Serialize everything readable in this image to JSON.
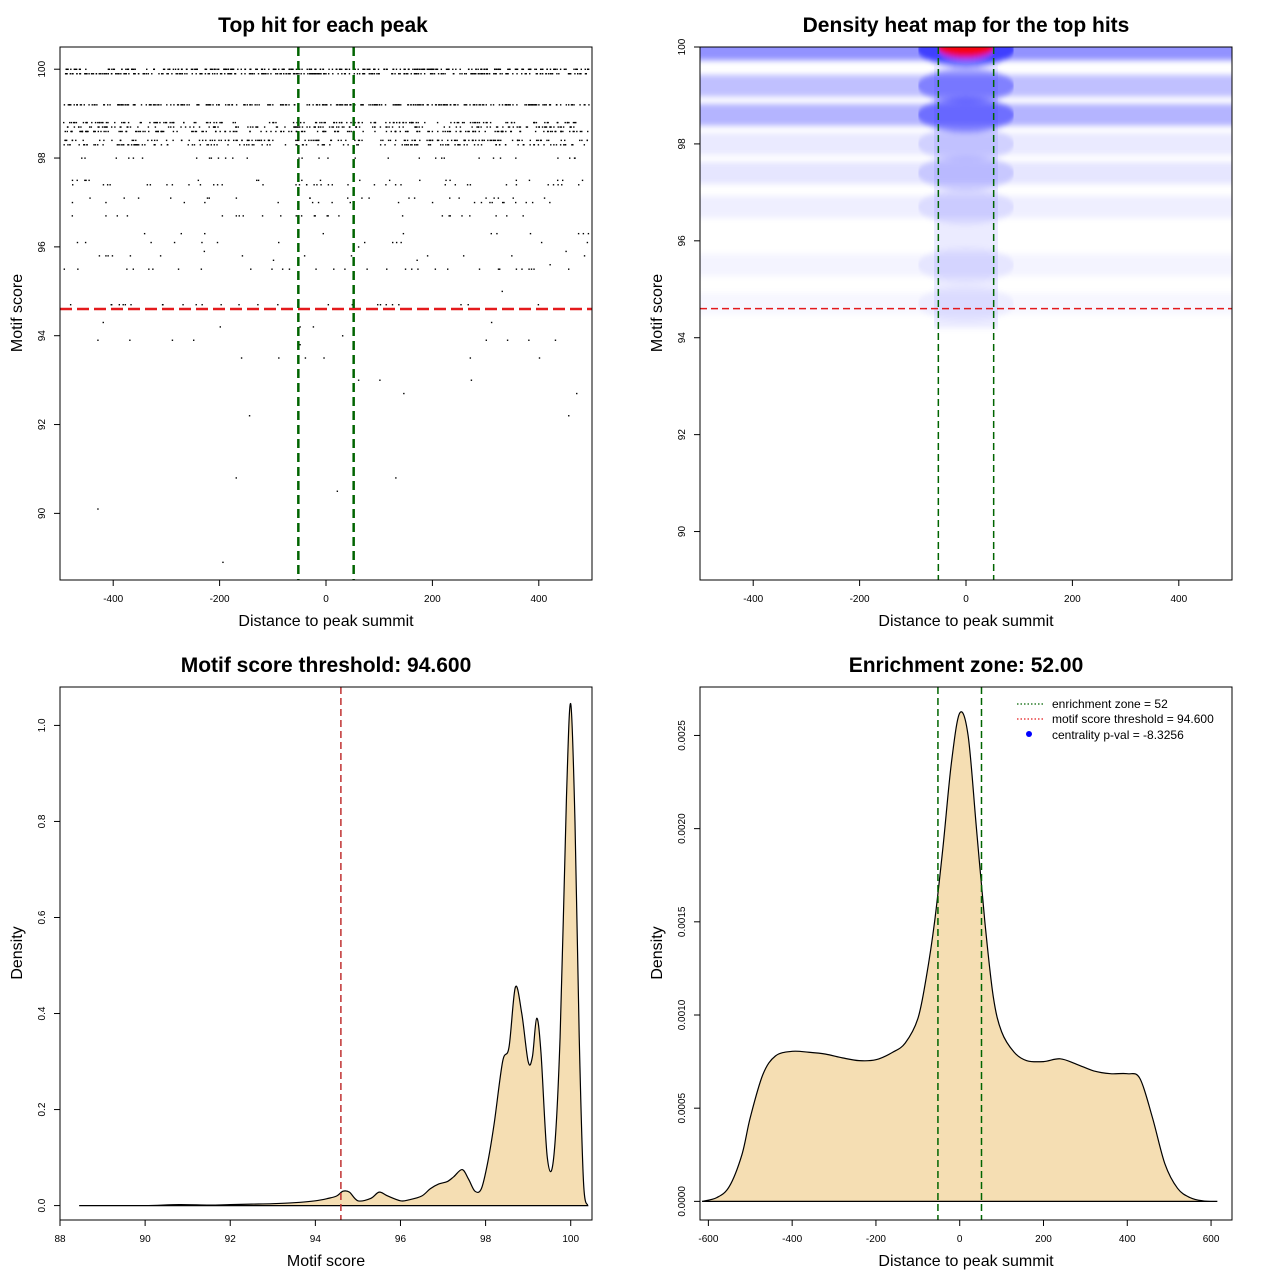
{
  "colors": {
    "threshold_red": "#e41a1c",
    "zone_green": "#006400",
    "density_fill": "#f5deb3",
    "heat_low": "#ffffff",
    "heat_mid": "#0000ff",
    "heat_high": "#ff0000",
    "point_black": "#000000"
  },
  "chart_data": [
    {
      "id": "scatter",
      "type": "scatter",
      "title": "Top hit for each peak",
      "xlabel": "Distance to peak summit",
      "ylabel": "Motif score",
      "xlim": [
        -500,
        500
      ],
      "ylim": [
        88.5,
        100.5
      ],
      "xticks": [
        -400,
        -200,
        0,
        200,
        400
      ],
      "yticks": [
        90,
        92,
        94,
        96,
        98,
        100
      ],
      "threshold": 94.6,
      "zone": [
        -52,
        52
      ],
      "dense_rows": [
        {
          "y": 100.0,
          "density": 1.0
        },
        {
          "y": 99.9,
          "density": 1.0
        },
        {
          "y": 99.2,
          "density": 1.0
        },
        {
          "y": 98.8,
          "density": 0.55
        },
        {
          "y": 98.7,
          "density": 0.55
        },
        {
          "y": 98.6,
          "density": 0.6
        },
        {
          "y": 98.4,
          "density": 0.55
        },
        {
          "y": 98.3,
          "density": 0.5
        },
        {
          "y": 98.0,
          "density": 0.12
        },
        {
          "y": 97.5,
          "density": 0.08
        },
        {
          "y": 97.4,
          "density": 0.15
        },
        {
          "y": 97.1,
          "density": 0.08
        },
        {
          "y": 97.0,
          "density": 0.08
        },
        {
          "y": 96.7,
          "density": 0.1
        },
        {
          "y": 96.3,
          "density": 0.04
        },
        {
          "y": 96.1,
          "density": 0.04
        },
        {
          "y": 95.8,
          "density": 0.05
        },
        {
          "y": 95.5,
          "density": 0.12
        },
        {
          "y": 94.7,
          "density": 0.1
        }
      ],
      "sparse_points": [
        [
          -430,
          90.1
        ],
        [
          -195,
          88.9
        ],
        [
          -170,
          90.8
        ],
        [
          -145,
          92.2
        ],
        [
          -160,
          93.5
        ],
        [
          -90,
          93.5
        ],
        [
          -40,
          93.5
        ],
        [
          -5,
          93.5
        ],
        [
          60,
          93.0
        ],
        [
          100,
          93.0
        ],
        [
          145,
          92.7
        ],
        [
          20,
          90.5
        ],
        [
          130,
          90.8
        ],
        [
          272,
          93.0
        ],
        [
          455,
          92.2
        ],
        [
          470,
          92.7
        ],
        [
          -430,
          93.9
        ],
        [
          -370,
          93.9
        ],
        [
          -290,
          93.9
        ],
        [
          -250,
          93.9
        ],
        [
          -200,
          94.2
        ],
        [
          -50,
          94.2
        ],
        [
          -25,
          94.2
        ],
        [
          30,
          94.0
        ],
        [
          300,
          93.9
        ],
        [
          340,
          93.9
        ],
        [
          380,
          93.9
        ],
        [
          430,
          93.9
        ],
        [
          270,
          93.5
        ],
        [
          400,
          93.5
        ],
        [
          -420,
          94.3
        ],
        [
          310,
          94.3
        ],
        [
          330,
          95.0
        ],
        [
          -100,
          95.7
        ],
        [
          -50,
          93.8
        ],
        [
          170,
          95.7
        ],
        [
          -330,
          96.1
        ],
        [
          -230,
          95.9
        ],
        [
          60,
          96.0
        ],
        [
          140,
          96.1
        ],
        [
          420,
          95.6
        ],
        [
          450,
          95.9
        ],
        [
          490,
          96.1
        ],
        [
          320,
          96.3
        ]
      ]
    },
    {
      "id": "heatmap",
      "type": "heatmap",
      "title": "Density heat map for the top hits",
      "xlabel": "Distance to peak summit",
      "ylabel": "Motif score",
      "xlim": [
        -500,
        500
      ],
      "ylim": [
        89,
        100
      ],
      "xticks": [
        -400,
        -200,
        0,
        200,
        400
      ],
      "yticks": [
        90,
        92,
        94,
        96,
        98,
        100
      ],
      "threshold": 94.6,
      "zone": [
        -52,
        52
      ],
      "bands": [
        {
          "y": 99.95,
          "amp": 0.95
        },
        {
          "y": 99.2,
          "amp": 0.55
        },
        {
          "y": 98.6,
          "amp": 0.65
        },
        {
          "y": 98.0,
          "amp": 0.18
        },
        {
          "y": 97.4,
          "amp": 0.22
        },
        {
          "y": 96.7,
          "amp": 0.14
        },
        {
          "y": 95.5,
          "amp": 0.1
        },
        {
          "y": 94.7,
          "amp": 0.07
        }
      ]
    },
    {
      "id": "motif-density",
      "type": "area",
      "title": "Motif score threshold: 94.600",
      "xlabel": "Motif score",
      "ylabel": "Density",
      "xlim": [
        88,
        100.5
      ],
      "ylim": [
        -0.03,
        1.08
      ],
      "xticks": [
        88,
        90,
        92,
        94,
        96,
        98,
        100
      ],
      "yticks": [
        0.0,
        0.2,
        0.4,
        0.6,
        0.8,
        1.0
      ],
      "ytick_labels": [
        "0.0",
        "0.2",
        "0.4",
        "0.6",
        "0.8",
        "1.0"
      ],
      "threshold": 94.6,
      "x": [
        88.45,
        89.0,
        90.0,
        90.8,
        91.5,
        92.0,
        92.5,
        93.0,
        93.5,
        94.0,
        94.3,
        94.5,
        94.65,
        94.8,
        95.0,
        95.3,
        95.5,
        95.7,
        96.0,
        96.2,
        96.5,
        96.7,
        96.9,
        97.1,
        97.25,
        97.45,
        97.6,
        97.75,
        97.9,
        98.05,
        98.2,
        98.4,
        98.55,
        98.7,
        98.85,
        99.0,
        99.1,
        99.2,
        99.3,
        99.45,
        99.6,
        99.75,
        99.9,
        100.0,
        100.1,
        100.2,
        100.3,
        100.4
      ],
      "y": [
        0.0,
        0.0,
        0.0,
        0.002,
        0.001,
        0.002,
        0.003,
        0.004,
        0.006,
        0.01,
        0.015,
        0.02,
        0.03,
        0.028,
        0.01,
        0.015,
        0.028,
        0.02,
        0.01,
        0.012,
        0.02,
        0.035,
        0.045,
        0.05,
        0.06,
        0.075,
        0.055,
        0.03,
        0.035,
        0.09,
        0.17,
        0.3,
        0.33,
        0.455,
        0.4,
        0.3,
        0.31,
        0.39,
        0.32,
        0.1,
        0.1,
        0.35,
        0.85,
        1.045,
        0.8,
        0.35,
        0.05,
        0.0
      ]
    },
    {
      "id": "summit-density",
      "type": "area",
      "title": "Enrichment zone: 52.00",
      "xlabel": "Distance to peak summit",
      "ylabel": "Density",
      "xlim": [
        -620,
        650
      ],
      "ylim": [
        -0.0001,
        0.00276
      ],
      "xticks": [
        -600,
        -400,
        -200,
        0,
        200,
        400,
        600
      ],
      "yticks": [
        0.0,
        0.0005,
        0.001,
        0.0015,
        0.002,
        0.0025
      ],
      "ytick_labels": [
        "0.0000",
        "0.0005",
        "0.0010",
        "0.0015",
        "0.0020",
        "0.0025"
      ],
      "zone": [
        -52,
        52
      ],
      "x": [
        -615,
        -580,
        -550,
        -520,
        -500,
        -470,
        -440,
        -400,
        -360,
        -320,
        -280,
        -240,
        -200,
        -160,
        -130,
        -100,
        -80,
        -60,
        -40,
        -20,
        0,
        20,
        40,
        60,
        80,
        100,
        130,
        160,
        200,
        240,
        280,
        320,
        360,
        400,
        430,
        460,
        490,
        520,
        550,
        580,
        615
      ],
      "y": [
        0.0,
        2e-05,
        8e-05,
        0.00025,
        0.00045,
        0.00068,
        0.00078,
        0.000805,
        0.0008,
        0.00079,
        0.00077,
        0.000755,
        0.00076,
        0.0008,
        0.00085,
        0.00098,
        0.0012,
        0.0015,
        0.0019,
        0.00235,
        0.00262,
        0.0025,
        0.002,
        0.0015,
        0.0011,
        0.00091,
        0.0008,
        0.000755,
        0.00075,
        0.000765,
        0.000735,
        0.0007,
        0.000685,
        0.000685,
        0.00066,
        0.00045,
        0.0002,
        7e-05,
        2e-05,
        3e-06,
        0.0
      ],
      "legend": [
        {
          "label": "enrichment zone = 52",
          "style": "green-dotted"
        },
        {
          "label": "motif score threshold = 94.600",
          "style": "red-dotted"
        },
        {
          "label": "centrality p-val = -8.3256",
          "style": "blue-dot"
        }
      ]
    }
  ]
}
